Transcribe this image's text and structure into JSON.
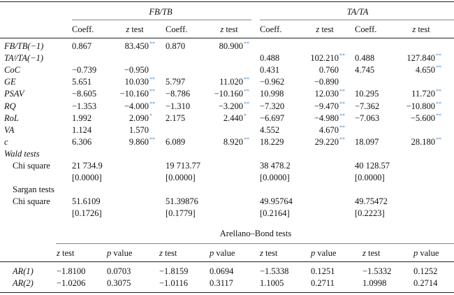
{
  "groups": [
    "FB/TB",
    "TA/TA"
  ],
  "col_headers": [
    "Coeff.",
    "z test",
    "Coeff.",
    "z test",
    "Coeff.",
    "z test",
    "Coeff.",
    "z test"
  ],
  "rows": [
    {
      "label": "FB/TB(−1)",
      "italic": true,
      "cells": [
        {
          "v": "0.867"
        },
        {
          "v": "83.450",
          "s": "**"
        },
        {
          "v": "0.870"
        },
        {
          "v": "80.900",
          "s": "**"
        },
        {
          "v": ""
        },
        {
          "v": ""
        },
        {
          "v": ""
        },
        {
          "v": ""
        }
      ]
    },
    {
      "label": "TAᶠ/TA(−1)",
      "italic": true,
      "cells": [
        {
          "v": ""
        },
        {
          "v": ""
        },
        {
          "v": ""
        },
        {
          "v": ""
        },
        {
          "v": "0.488"
        },
        {
          "v": "102.210",
          "s": "**"
        },
        {
          "v": "0.488"
        },
        {
          "v": "127.840",
          "s": "**"
        }
      ]
    },
    {
      "label": "CoC",
      "italic": true,
      "cells": [
        {
          "v": "−0.739"
        },
        {
          "v": "−0.950"
        },
        {
          "v": ""
        },
        {
          "v": ""
        },
        {
          "v": "0.431"
        },
        {
          "v": "0.760"
        },
        {
          "v": "4.745"
        },
        {
          "v": "4.650",
          "s": "**"
        }
      ]
    },
    {
      "label": "GE",
      "italic": true,
      "cells": [
        {
          "v": "5.651"
        },
        {
          "v": "10.030",
          "s": "**"
        },
        {
          "v": "5.797"
        },
        {
          "v": "11.020",
          "s": "**"
        },
        {
          "v": "−0.962"
        },
        {
          "v": "−0.890"
        },
        {
          "v": ""
        },
        {
          "v": ""
        }
      ]
    },
    {
      "label": "PSAV",
      "italic": true,
      "cells": [
        {
          "v": "−8.605"
        },
        {
          "v": "−10.160",
          "s": "**"
        },
        {
          "v": "−8.786"
        },
        {
          "v": "−10.160",
          "s": "**"
        },
        {
          "v": "10.998"
        },
        {
          "v": "12.030",
          "s": "**"
        },
        {
          "v": "10.295"
        },
        {
          "v": "11.720",
          "s": "**"
        }
      ]
    },
    {
      "label": "RQ",
      "italic": true,
      "cells": [
        {
          "v": "−1.353"
        },
        {
          "v": "−4.000",
          "s": "**"
        },
        {
          "v": "−1.310"
        },
        {
          "v": "−3.200",
          "s": "**"
        },
        {
          "v": "−7.320"
        },
        {
          "v": "−9.470",
          "s": "**"
        },
        {
          "v": "−7.362"
        },
        {
          "v": "−10.800",
          "s": "**"
        }
      ]
    },
    {
      "label": "RoL",
      "italic": true,
      "cells": [
        {
          "v": "1.992"
        },
        {
          "v": "2.090",
          "s": "*"
        },
        {
          "v": "2.175"
        },
        {
          "v": "2.440",
          "s": "*"
        },
        {
          "v": "−6.697"
        },
        {
          "v": "−4.980",
          "s": "**"
        },
        {
          "v": "−7.063"
        },
        {
          "v": "−5.600",
          "s": "**"
        }
      ]
    },
    {
      "label": "VA",
      "italic": true,
      "cells": [
        {
          "v": "1.124"
        },
        {
          "v": "1.570"
        },
        {
          "v": ""
        },
        {
          "v": ""
        },
        {
          "v": "4.552"
        },
        {
          "v": "4.670",
          "s": "**"
        },
        {
          "v": ""
        },
        {
          "v": ""
        }
      ]
    },
    {
      "label": "c",
      "italic": true,
      "cells": [
        {
          "v": "6.306"
        },
        {
          "v": "9.860",
          "s": "**"
        },
        {
          "v": "6.089"
        },
        {
          "v": "8.920",
          "s": "**"
        },
        {
          "v": "18.229"
        },
        {
          "v": "29.220",
          "s": "**"
        },
        {
          "v": "18.097"
        },
        {
          "v": "28.180",
          "s": "**"
        }
      ]
    },
    {
      "label": "Wald tests",
      "italic": true,
      "cells": []
    },
    {
      "label": "Chi square",
      "indent": true,
      "cells": [
        {
          "v": "21 734.9"
        },
        {
          "v": ""
        },
        {
          "v": "19 713.77"
        },
        {
          "v": ""
        },
        {
          "v": "38 478.2"
        },
        {
          "v": ""
        },
        {
          "v": "40 128.57"
        },
        {
          "v": ""
        }
      ]
    },
    {
      "label": "",
      "cells": [
        {
          "v": "[0.0000]"
        },
        {
          "v": ""
        },
        {
          "v": "[0.0000]"
        },
        {
          "v": ""
        },
        {
          "v": "[0.0000]"
        },
        {
          "v": ""
        },
        {
          "v": "[0.0000]"
        },
        {
          "v": ""
        }
      ]
    },
    {
      "label": "Sargan tests",
      "indent": true,
      "cells": []
    },
    {
      "label": "Chi square",
      "indent": true,
      "cells": [
        {
          "v": "51.6109"
        },
        {
          "v": ""
        },
        {
          "v": "51.39876"
        },
        {
          "v": ""
        },
        {
          "v": "49.95764"
        },
        {
          "v": ""
        },
        {
          "v": "49.75472"
        },
        {
          "v": ""
        }
      ]
    },
    {
      "label": "",
      "cells": [
        {
          "v": "[0.1726]"
        },
        {
          "v": ""
        },
        {
          "v": "[0.1779]"
        },
        {
          "v": ""
        },
        {
          "v": "[0.2164]"
        },
        {
          "v": ""
        },
        {
          "v": "[0.2223]"
        },
        {
          "v": ""
        }
      ]
    }
  ],
  "ab": {
    "title": "Arellano–Bond tests",
    "headers": [
      "z test",
      "p value",
      "z test",
      "p value",
      "z test",
      "p value",
      "z test",
      "p value"
    ],
    "rows": [
      {
        "label": "AR(1)",
        "cells": [
          "−1.8100",
          "0.0703",
          "−1.8159",
          "0.0694",
          "−1.5338",
          "0.1251",
          "−1.5332",
          "0.1252"
        ]
      },
      {
        "label": "AR(2)",
        "cells": [
          "−1.0206",
          "0.3075",
          "−1.0116",
          "0.3117",
          "1.1005",
          "0.2711",
          "1.0998",
          "0.2714"
        ]
      }
    ]
  },
  "colors": {
    "significance_star": "#3d8fd8"
  }
}
